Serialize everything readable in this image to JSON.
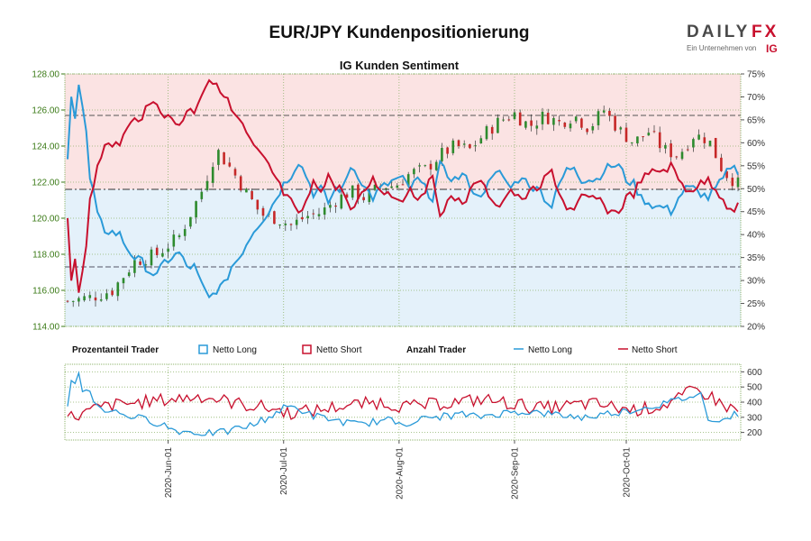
{
  "header": {
    "title": "EUR/JPY Kundenpositionierung",
    "logo_main_dark": "DAILY",
    "logo_main_accent": "FX",
    "logo_sub": "Ein Unternehmen von",
    "logo_brand": "IG"
  },
  "colors": {
    "long": "#2a9ad8",
    "short": "#c8102e",
    "candle_up": "#2e8b2e",
    "candle_down": "#c62828",
    "upper_zone": "#fbe3e3",
    "lower_zone": "#e4f1fa",
    "left_axis": "#3a7a16",
    "grid": "#8db36b"
  },
  "chart_data": [
    {
      "type": "candlestick+line",
      "title": "IG Kunden Sentiment",
      "price_axis": {
        "ylim": [
          114.0,
          128.0
        ],
        "ticks": [
          "114.00",
          "116.00",
          "118.00",
          "120.00",
          "122.00",
          "124.00",
          "126.00",
          "128.00"
        ]
      },
      "percent_axis": {
        "ylim": [
          20,
          75
        ],
        "ticks": [
          "20%",
          "25%",
          "30%",
          "35%",
          "40%",
          "45%",
          "50%",
          "55%",
          "60%",
          "65%",
          "70%",
          "75%"
        ]
      },
      "reference_lines": {
        "price_high": 125.7,
        "price_mid": 121.6,
        "price_low": 117.3
      },
      "x_range_days": [
        0,
        180
      ],
      "price_keypoints": [
        [
          0,
          115.4
        ],
        [
          6,
          115.6
        ],
        [
          12,
          116.0
        ],
        [
          18,
          117.6
        ],
        [
          24,
          118.0
        ],
        [
          30,
          119.0
        ],
        [
          36,
          121.5
        ],
        [
          40,
          123.8
        ],
        [
          44,
          122.7
        ],
        [
          48,
          121.4
        ],
        [
          52,
          120.2
        ],
        [
          56,
          120.0
        ],
        [
          60,
          119.6
        ],
        [
          64,
          120.1
        ],
        [
          68,
          120.3
        ],
        [
          72,
          121.0
        ],
        [
          76,
          121.5
        ],
        [
          80,
          121.1
        ],
        [
          84,
          121.8
        ],
        [
          88,
          121.8
        ],
        [
          92,
          122.5
        ],
        [
          96,
          122.7
        ],
        [
          100,
          123.5
        ],
        [
          104,
          124.0
        ],
        [
          108,
          123.8
        ],
        [
          112,
          124.7
        ],
        [
          116,
          125.4
        ],
        [
          120,
          125.8
        ],
        [
          124,
          125.1
        ],
        [
          128,
          125.7
        ],
        [
          132,
          125.3
        ],
        [
          136,
          125.7
        ],
        [
          140,
          125.0
        ],
        [
          144,
          126.0
        ],
        [
          148,
          124.9
        ],
        [
          152,
          124.2
        ],
        [
          156,
          124.8
        ],
        [
          160,
          123.8
        ],
        [
          164,
          123.5
        ],
        [
          168,
          124.6
        ],
        [
          172,
          124.4
        ],
        [
          176,
          122.6
        ],
        [
          180,
          121.9
        ]
      ],
      "long_pct_keypoints": [
        [
          0,
          56
        ],
        [
          1,
          71
        ],
        [
          2,
          66
        ],
        [
          3,
          73
        ],
        [
          4,
          68
        ],
        [
          5,
          62
        ],
        [
          6,
          52
        ],
        [
          7,
          49
        ],
        [
          8,
          44
        ],
        [
          10,
          41
        ],
        [
          14,
          40
        ],
        [
          16,
          37
        ],
        [
          18,
          35
        ],
        [
          20,
          34
        ],
        [
          22,
          32
        ],
        [
          24,
          31
        ],
        [
          26,
          34
        ],
        [
          28,
          35
        ],
        [
          30,
          36
        ],
        [
          32,
          33
        ],
        [
          34,
          33
        ],
        [
          36,
          29
        ],
        [
          38,
          26
        ],
        [
          40,
          28
        ],
        [
          42,
          29
        ],
        [
          44,
          33
        ],
        [
          46,
          35
        ],
        [
          48,
          38
        ],
        [
          50,
          41
        ],
        [
          52,
          43
        ],
        [
          54,
          45
        ],
        [
          56,
          48
        ],
        [
          58,
          51
        ],
        [
          60,
          53
        ],
        [
          62,
          56
        ],
        [
          64,
          53
        ],
        [
          66,
          49
        ],
        [
          68,
          50
        ],
        [
          70,
          47
        ],
        [
          72,
          50
        ],
        [
          74,
          50
        ],
        [
          76,
          55
        ],
        [
          78,
          53
        ],
        [
          80,
          50
        ],
        [
          82,
          48
        ],
        [
          84,
          50
        ],
        [
          86,
          51
        ],
        [
          88,
          52
        ],
        [
          90,
          52
        ],
        [
          92,
          50
        ],
        [
          94,
          52
        ],
        [
          96,
          50
        ],
        [
          98,
          48
        ],
        [
          100,
          55
        ],
        [
          102,
          53
        ],
        [
          104,
          52
        ],
        [
          106,
          53
        ],
        [
          108,
          51
        ],
        [
          110,
          48
        ],
        [
          112,
          50
        ],
        [
          114,
          52
        ],
        [
          116,
          54
        ],
        [
          118,
          51
        ],
        [
          120,
          51
        ],
        [
          122,
          53
        ],
        [
          124,
          50
        ],
        [
          126,
          51
        ],
        [
          128,
          48
        ],
        [
          130,
          46
        ],
        [
          132,
          51
        ],
        [
          134,
          54
        ],
        [
          136,
          55
        ],
        [
          138,
          52
        ],
        [
          140,
          52
        ],
        [
          142,
          52
        ],
        [
          144,
          54
        ],
        [
          146,
          55
        ],
        [
          148,
          55
        ],
        [
          150,
          52
        ],
        [
          152,
          51
        ],
        [
          154,
          48
        ],
        [
          156,
          47
        ],
        [
          158,
          46
        ],
        [
          160,
          46
        ],
        [
          162,
          45
        ],
        [
          164,
          48
        ],
        [
          166,
          50
        ],
        [
          168,
          50
        ],
        [
          170,
          49
        ],
        [
          172,
          48
        ],
        [
          174,
          50
        ],
        [
          176,
          52
        ],
        [
          178,
          55
        ],
        [
          180,
          54
        ]
      ],
      "series": [
        {
          "name": "Netto Long",
          "type": "line"
        },
        {
          "name": "Netto Short",
          "type": "line"
        }
      ]
    },
    {
      "type": "line",
      "title": "Anzahl Trader",
      "ylim": [
        150,
        650
      ],
      "ticks": [
        "200",
        "300",
        "400",
        "500",
        "600"
      ],
      "x_ticks": [
        "2020-Jun-01",
        "2020-Jul-01",
        "2020-Aug-01",
        "2020-Sep-01",
        "2020-Oct-01"
      ],
      "x_tick_days": [
        27,
        58,
        89,
        120,
        150
      ],
      "long_keypoints": [
        [
          0,
          380
        ],
        [
          1,
          550
        ],
        [
          2,
          520
        ],
        [
          3,
          610
        ],
        [
          4,
          480
        ],
        [
          6,
          460
        ],
        [
          8,
          380
        ],
        [
          10,
          350
        ],
        [
          14,
          330
        ],
        [
          18,
          300
        ],
        [
          22,
          280
        ],
        [
          26,
          250
        ],
        [
          28,
          220
        ],
        [
          30,
          210
        ],
        [
          34,
          200
        ],
        [
          38,
          195
        ],
        [
          42,
          200
        ],
        [
          46,
          230
        ],
        [
          50,
          250
        ],
        [
          52,
          280
        ],
        [
          54,
          300
        ],
        [
          56,
          330
        ],
        [
          58,
          360
        ],
        [
          60,
          370
        ],
        [
          62,
          360
        ],
        [
          64,
          330
        ],
        [
          66,
          310
        ],
        [
          70,
          290
        ],
        [
          74,
          270
        ],
        [
          78,
          250
        ],
        [
          82,
          270
        ],
        [
          86,
          280
        ],
        [
          90,
          260
        ],
        [
          94,
          280
        ],
        [
          98,
          300
        ],
        [
          102,
          310
        ],
        [
          106,
          320
        ],
        [
          110,
          300
        ],
        [
          114,
          320
        ],
        [
          118,
          330
        ],
        [
          122,
          340
        ],
        [
          126,
          330
        ],
        [
          130,
          320
        ],
        [
          134,
          310
        ],
        [
          138,
          300
        ],
        [
          142,
          310
        ],
        [
          146,
          330
        ],
        [
          150,
          340
        ],
        [
          154,
          360
        ],
        [
          158,
          380
        ],
        [
          162,
          400
        ],
        [
          166,
          430
        ],
        [
          170,
          450
        ],
        [
          172,
          300
        ],
        [
          176,
          280
        ],
        [
          180,
          330
        ]
      ],
      "short_keypoints": [
        [
          0,
          300
        ],
        [
          4,
          320
        ],
        [
          8,
          360
        ],
        [
          12,
          380
        ],
        [
          16,
          390
        ],
        [
          20,
          400
        ],
        [
          24,
          410
        ],
        [
          28,
          420
        ],
        [
          32,
          430
        ],
        [
          36,
          440
        ],
        [
          40,
          420
        ],
        [
          44,
          400
        ],
        [
          48,
          380
        ],
        [
          52,
          370
        ],
        [
          56,
          350
        ],
        [
          60,
          330
        ],
        [
          64,
          340
        ],
        [
          68,
          350
        ],
        [
          72,
          370
        ],
        [
          76,
          380
        ],
        [
          80,
          390
        ],
        [
          84,
          400
        ],
        [
          88,
          380
        ],
        [
          92,
          370
        ],
        [
          96,
          380
        ],
        [
          100,
          390
        ],
        [
          104,
          400
        ],
        [
          108,
          410
        ],
        [
          112,
          420
        ],
        [
          116,
          400
        ],
        [
          120,
          390
        ],
        [
          124,
          370
        ],
        [
          128,
          360
        ],
        [
          132,
          370
        ],
        [
          136,
          380
        ],
        [
          140,
          390
        ],
        [
          144,
          380
        ],
        [
          148,
          360
        ],
        [
          152,
          350
        ],
        [
          156,
          360
        ],
        [
          160,
          380
        ],
        [
          164,
          420
        ],
        [
          168,
          480
        ],
        [
          172,
          450
        ],
        [
          176,
          380
        ],
        [
          180,
          340
        ]
      ]
    }
  ],
  "legend": {
    "percent_header": "Prozentanteil Trader",
    "percent_long": "Netto Long",
    "percent_short": "Netto Short",
    "count_header": "Anzahl Trader",
    "count_long": "Netto Long",
    "count_short": "Netto Short"
  }
}
